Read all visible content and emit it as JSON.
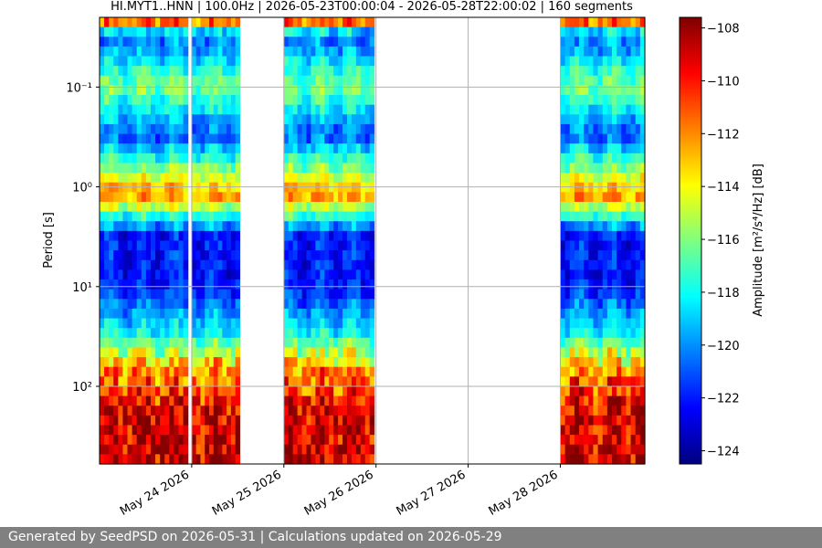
{
  "chart_data": {
    "type": "heatmap",
    "title": "HI.MYT1..HNN | 100.0Hz | 2026-05-23T00:00:04 - 2026-05-28T22:00:02 | 160 segments",
    "ylabel": "Period [s]",
    "colorbar_label": "Amplitude [m²/s⁴/Hz] [dB]",
    "y_scale": "log",
    "ylim": [
      0.02,
      600
    ],
    "y_ticks": [
      {
        "value": 0.1,
        "label": "10⁻¹"
      },
      {
        "value": 1,
        "label": "10⁰"
      },
      {
        "value": 10,
        "label": "10¹"
      },
      {
        "value": 100,
        "label": "10²"
      }
    ],
    "xlim": [
      "2026-05-23T00:00:04",
      "2026-05-28T22:00:02"
    ],
    "x_ticks": [
      "May 24 2026",
      "May 25 2026",
      "May 26 2026",
      "May 27 2026",
      "May 28 2026"
    ],
    "colorbar_range": [
      -124.5,
      -107.6
    ],
    "colorbar_ticks": [
      -108,
      -110,
      -112,
      -114,
      -116,
      -118,
      -120,
      -122,
      -124
    ],
    "colormap": "jet",
    "grid": true,
    "data_blocks": [
      {
        "start": "2026-05-23T00:00",
        "end": "2026-05-23T23:00"
      },
      {
        "start": "2026-05-24T00:00",
        "end": "2026-05-24T12:30"
      },
      {
        "start": "2026-05-25T00:00",
        "end": "2026-05-25T23:30"
      },
      {
        "start": "2026-05-28T00:00",
        "end": "2026-05-28T22:00"
      }
    ],
    "amplitude_profile_db": [
      {
        "period": 0.02,
        "amp": -108
      },
      {
        "period": 0.03,
        "amp": -121
      },
      {
        "period": 0.1,
        "amp": -116
      },
      {
        "period": 0.3,
        "amp": -121
      },
      {
        "period": 1.2,
        "amp": -112
      },
      {
        "period": 3,
        "amp": -122
      },
      {
        "period": 10,
        "amp": -122
      },
      {
        "period": 30,
        "amp": -118
      },
      {
        "period": 70,
        "amp": -112
      },
      {
        "period": 200,
        "amp": -109
      },
      {
        "period": 600,
        "amp": -109
      }
    ]
  },
  "footer": {
    "text": "Generated by SeedPSD on 2026-05-31 | Calculations updated on 2026-05-29"
  }
}
